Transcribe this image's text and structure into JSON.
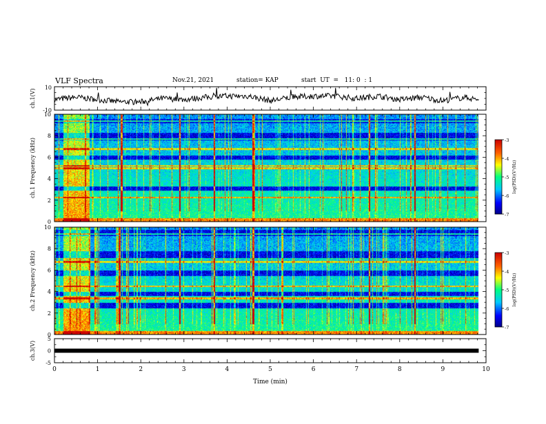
{
  "header": {
    "title": "VLF Spectra",
    "date": "Nov.21, 2021",
    "station": "station= KAP",
    "start": "start  UT  =   11: 0  : 1"
  },
  "chart_data": [
    {
      "type": "line",
      "panel": "ch1-waveform",
      "ylabel": "ch.1(V)",
      "ylim": [
        -10,
        10
      ],
      "yticks": [
        "10",
        "-10"
      ],
      "xlim": [
        0,
        10
      ],
      "x_end": 9.83,
      "noise_seed": 7,
      "series": [
        {
          "description_values_min_v": -6,
          "description_values_max_v": 8,
          "x": [
            0,
            0.5,
            1,
            1.5,
            2,
            2.5,
            3,
            3.5,
            4,
            4.5,
            5,
            5.5,
            6,
            6.5,
            7,
            7.5,
            8,
            8.5,
            9,
            9.5,
            9.83
          ],
          "y": [
            -1,
            1,
            -1,
            -3,
            -3,
            0,
            -1,
            1,
            2,
            2,
            -2,
            1,
            2,
            2,
            0,
            2,
            -1,
            1,
            -2,
            1,
            -1
          ]
        }
      ]
    },
    {
      "type": "heatmap",
      "panel": "ch1-spectrogram",
      "ylabel": "ch.1 Frequency (kHz)",
      "ylim": [
        0,
        10
      ],
      "yticks": [
        "0",
        "2",
        "4",
        "6",
        "8",
        "10"
      ],
      "xlim": [
        0,
        10
      ],
      "x_end": 9.83,
      "colorbar": {
        "label": "log(PSD)(V²/Hz)",
        "range": [
          -7,
          -3
        ],
        "ticks": [
          "-3",
          "-4",
          "-5",
          "-6",
          "-7"
        ]
      },
      "quiet_bands_khz": [
        [
          9.2,
          9.6
        ],
        [
          7.6,
          8.3
        ],
        [
          5.8,
          6.2
        ],
        [
          2.9,
          3.3
        ]
      ],
      "strong_lines_khz": [
        0.3,
        2.3,
        5.0,
        5.2,
        6.8,
        7.7,
        9.4
      ],
      "burst_interval_min": [
        0.2,
        0.8
      ],
      "spike_times_min": [
        3.7,
        4.6,
        7.3,
        8.35,
        1.55,
        2.9
      ]
    },
    {
      "type": "heatmap",
      "panel": "ch2-spectrogram",
      "ylabel": "ch.2 Frequency (kHz)",
      "ylim": [
        0,
        10
      ],
      "yticks": [
        "0",
        "2",
        "4",
        "6",
        "8",
        "10"
      ],
      "xlim": [
        0,
        10
      ],
      "x_end": 9.83,
      "colorbar": {
        "label": "log(PSD)(V²/Hz)",
        "range": [
          -7,
          -3
        ],
        "ticks": [
          "-3",
          "-4",
          "-5",
          "-6",
          "-7"
        ]
      },
      "quiet_bands_khz": [
        [
          9.2,
          9.8
        ],
        [
          7.0,
          7.8
        ],
        [
          5.5,
          6.0
        ],
        [
          3.6,
          4.0
        ],
        [
          2.5,
          3.0
        ]
      ],
      "strong_lines_khz": [
        0.3,
        3.4,
        4.5,
        6.8,
        7.1,
        9.4
      ],
      "burst_interval_min": [
        0.2,
        0.8
      ],
      "spike_times_min": [
        1.5,
        2.9,
        3.7,
        4.6,
        7.3,
        8.35
      ]
    },
    {
      "type": "line",
      "panel": "ch3-level",
      "ylabel": "ch.3(V)",
      "ylim": [
        -5,
        5
      ],
      "yticks": [
        "5",
        "0",
        "-5"
      ],
      "xlim": [
        0,
        10
      ],
      "series": [
        {
          "x": [
            0,
            9.83
          ],
          "y": [
            0,
            0
          ]
        }
      ]
    }
  ],
  "x_axis": {
    "label": "Time  (min)",
    "ticks": [
      "0",
      "1",
      "2",
      "3",
      "4",
      "5",
      "6",
      "7",
      "8",
      "9",
      "10"
    ]
  }
}
